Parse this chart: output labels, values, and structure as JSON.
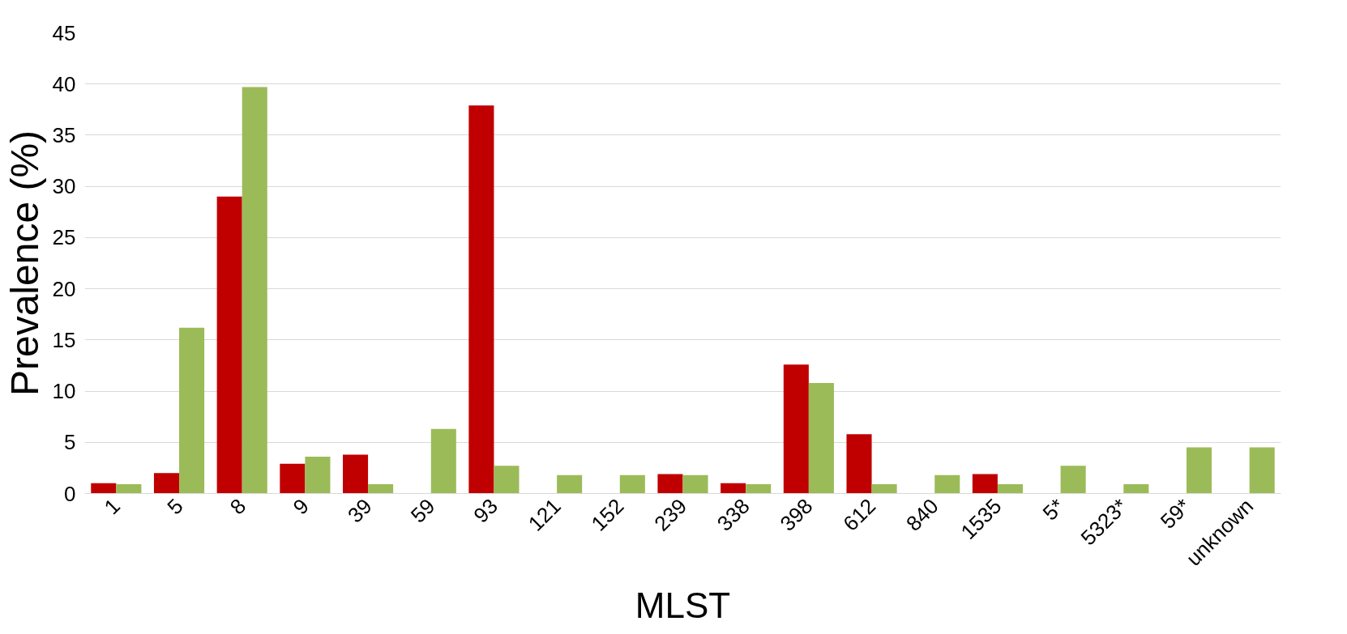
{
  "chart_data": {
    "type": "bar",
    "xlabel": "MLST",
    "ylabel": "Prevalence (%)",
    "categories": [
      "1",
      "5",
      "8",
      "9",
      "39",
      "59",
      "93",
      "121",
      "152",
      "239",
      "338",
      "398",
      "612",
      "840",
      "1535",
      "5*",
      "5323*",
      "59*",
      "unknown"
    ],
    "series": [
      {
        "color": "#c00000",
        "values": [
          1,
          2,
          29,
          2.9,
          3.8,
          0,
          37.9,
          0,
          0,
          1.9,
          1,
          12.6,
          5.8,
          0,
          1.9,
          0,
          0,
          0,
          0
        ]
      },
      {
        "color": "#9bbb59",
        "values": [
          0.9,
          16.2,
          39.7,
          3.6,
          0.9,
          6.3,
          2.7,
          1.8,
          1.8,
          1.8,
          0.9,
          10.8,
          0.9,
          1.8,
          0.9,
          2.7,
          0.9,
          4.5,
          4.5
        ]
      }
    ],
    "ylim": [
      0,
      45
    ],
    "yticks": [
      0,
      5,
      10,
      15,
      20,
      25,
      30,
      35,
      40,
      45
    ],
    "grid": "y"
  }
}
